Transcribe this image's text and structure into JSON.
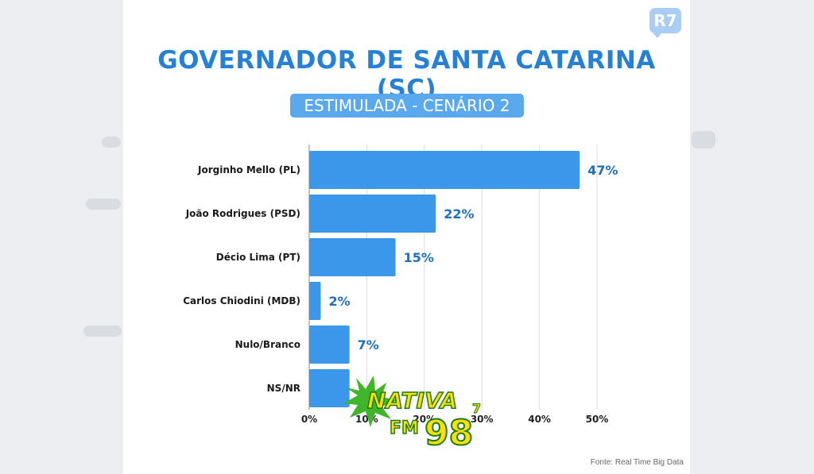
{
  "brand": {
    "logo": "R7"
  },
  "header": {
    "title": "GOVERNADOR DE SANTA CATARINA (SC)",
    "subtitle": "ESTIMULADA - CENÁRIO 2"
  },
  "footer": {
    "source": "Fonte: Real Time Big Data"
  },
  "watermark": {
    "name": "NATIVA",
    "fm": "FM",
    "freq": "98",
    "decimal": "7"
  },
  "colors": {
    "bar": "#3a97ea",
    "title": "#2580d6",
    "value_label": "#1f6fbf"
  },
  "chart_data": {
    "type": "bar",
    "orientation": "horizontal",
    "title": "GOVERNADOR DE SANTA CATARINA (SC)",
    "subtitle": "ESTIMULADA - CENÁRIO 2",
    "categories": [
      "Jorginho Mello (PL)",
      "João Rodrigues (PSD)",
      "Décio Lima (PT)",
      "Carlos Chiodini (MDB)",
      "Nulo/Branco",
      "NS/NR"
    ],
    "values": [
      47,
      22,
      15,
      2,
      7,
      7
    ],
    "value_labels": [
      "47%",
      "22%",
      "15%",
      "2%",
      "7%",
      ""
    ],
    "xlim": [
      0,
      50
    ],
    "ticks": [
      0,
      10,
      20,
      30,
      40,
      50
    ],
    "tick_labels": [
      "0%",
      "10%",
      "20%",
      "30%",
      "40%",
      "50%"
    ],
    "grid": true,
    "unit": "%"
  }
}
